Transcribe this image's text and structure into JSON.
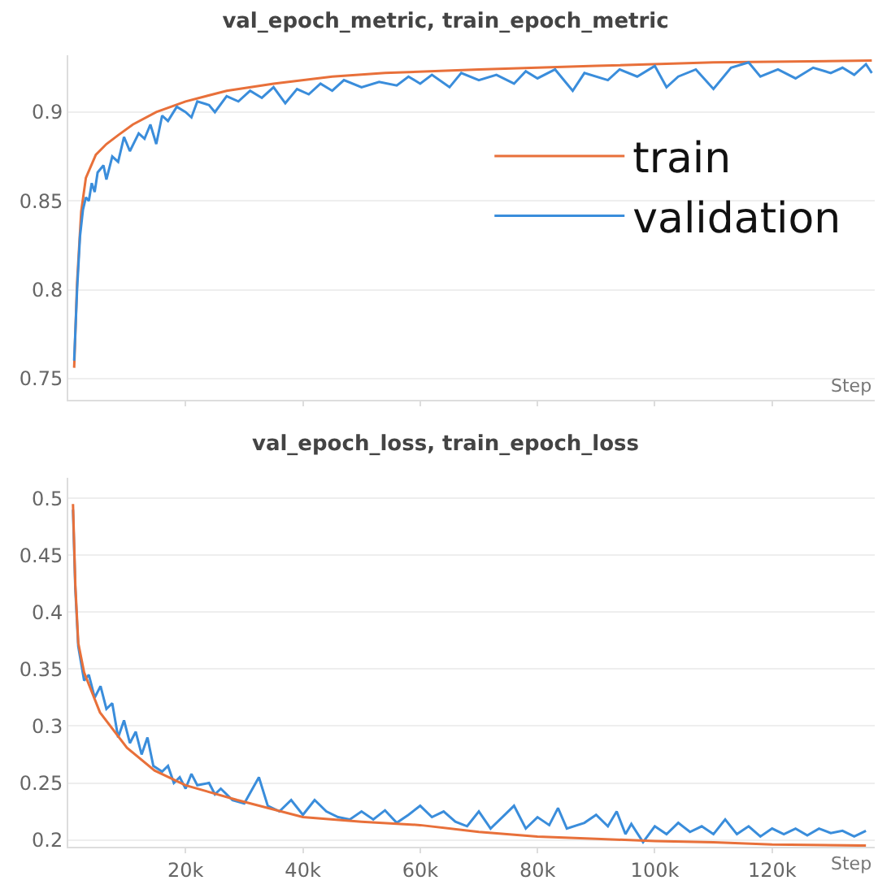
{
  "chart_data": [
    {
      "type": "line",
      "title": "val_epoch_metric, train_epoch_metric",
      "xlabel": "Step",
      "xlim": [
        0,
        137500
      ],
      "xticks": [
        {
          "value": 20000,
          "label": null
        },
        {
          "value": 40000,
          "label": null
        },
        {
          "value": 60000,
          "label": null
        },
        {
          "value": 80000,
          "label": null
        },
        {
          "value": 100000,
          "label": null
        },
        {
          "value": 120000,
          "label": null
        }
      ],
      "tick_labels": "y",
      "ylim": [
        0.738,
        0.932
      ],
      "yticks": [
        0.75,
        0.8,
        0.85,
        0.9
      ],
      "grid": "y",
      "legend": "right",
      "series": [
        {
          "name": "train",
          "color": "#e8703a",
          "x": [
            1000,
            1500,
            2200,
            3000,
            4700,
            6500,
            8500,
            11000,
            15000,
            20000,
            27000,
            35000,
            45000,
            54000,
            70000,
            90000,
            110000,
            137000
          ],
          "values": [
            0.756,
            0.804,
            0.844,
            0.863,
            0.876,
            0.882,
            0.887,
            0.893,
            0.9,
            0.906,
            0.912,
            0.916,
            0.92,
            0.922,
            0.924,
            0.926,
            0.928,
            0.929
          ]
        },
        {
          "name": "validation",
          "color": "#3a8ddb",
          "x": [
            1000,
            1500,
            2000,
            2500,
            3000,
            3500,
            4000,
            4500,
            5000,
            6000,
            6500,
            7500,
            8500,
            9500,
            10500,
            12000,
            13000,
            14000,
            15000,
            16000,
            17000,
            18500,
            20000,
            21000,
            22000,
            24000,
            25000,
            27000,
            29000,
            31000,
            33000,
            35000,
            37000,
            39000,
            41000,
            43000,
            45000,
            47000,
            50000,
            53000,
            56000,
            58000,
            60000,
            62000,
            65000,
            67000,
            70000,
            73000,
            76000,
            78000,
            80000,
            83000,
            86000,
            88000,
            92000,
            94000,
            97000,
            100000,
            102000,
            104000,
            107000,
            110000,
            113000,
            116000,
            118000,
            121000,
            124000,
            127000,
            130000,
            132000,
            134000,
            136000,
            137000
          ],
          "values": [
            0.76,
            0.8,
            0.83,
            0.845,
            0.852,
            0.85,
            0.86,
            0.855,
            0.866,
            0.87,
            0.862,
            0.875,
            0.872,
            0.886,
            0.878,
            0.888,
            0.885,
            0.893,
            0.882,
            0.898,
            0.895,
            0.903,
            0.9,
            0.897,
            0.906,
            0.904,
            0.9,
            0.909,
            0.906,
            0.912,
            0.908,
            0.914,
            0.905,
            0.913,
            0.91,
            0.916,
            0.912,
            0.918,
            0.914,
            0.917,
            0.915,
            0.92,
            0.916,
            0.921,
            0.914,
            0.922,
            0.918,
            0.921,
            0.916,
            0.923,
            0.919,
            0.924,
            0.912,
            0.922,
            0.918,
            0.924,
            0.92,
            0.926,
            0.914,
            0.92,
            0.924,
            0.913,
            0.925,
            0.928,
            0.92,
            0.924,
            0.919,
            0.925,
            0.922,
            0.925,
            0.921,
            0.927,
            0.922
          ]
        }
      ]
    },
    {
      "type": "line",
      "title": "val_epoch_loss, train_epoch_loss",
      "xlabel": "Step",
      "xlim": [
        0,
        137500
      ],
      "xticks": [
        {
          "value": 20000,
          "label": "20k"
        },
        {
          "value": 40000,
          "label": "40k"
        },
        {
          "value": 60000,
          "label": "60k"
        },
        {
          "value": 80000,
          "label": "80k"
        },
        {
          "value": 100000,
          "label": "100k"
        },
        {
          "value": 120000,
          "label": "120k"
        }
      ],
      "ylim": [
        0.194,
        0.518
      ],
      "yticks": [
        0.2,
        0.25,
        0.3,
        0.35,
        0.4,
        0.45,
        0.5
      ],
      "grid": "y",
      "series": [
        {
          "color": "#3a8ddb",
          "x": [
            800,
            1200,
            1700,
            2200,
            2700,
            3500,
            4500,
            5500,
            6500,
            7500,
            8500,
            9500,
            10500,
            11500,
            12500,
            13500,
            14500,
            16000,
            17000,
            18000,
            19000,
            20000,
            21000,
            22000,
            24000,
            25000,
            26000,
            28000,
            30000,
            32500,
            34000,
            36000,
            38000,
            40000,
            42000,
            44000,
            46000,
            48000,
            50000,
            52000,
            54000,
            56000,
            58000,
            60000,
            62000,
            64000,
            66000,
            68000,
            70000,
            72000,
            74000,
            76000,
            78000,
            80000,
            82000,
            83500,
            85000,
            88000,
            90000,
            92000,
            93500,
            95000,
            96000,
            98000,
            100000,
            102000,
            104000,
            106000,
            108000,
            110000,
            112000,
            114000,
            116000,
            118000,
            120000,
            122000,
            124000,
            126000,
            128000,
            130000,
            132000,
            134000,
            136000
          ],
          "values": [
            0.49,
            0.42,
            0.37,
            0.355,
            0.34,
            0.345,
            0.325,
            0.335,
            0.315,
            0.32,
            0.29,
            0.305,
            0.285,
            0.295,
            0.275,
            0.29,
            0.265,
            0.26,
            0.265,
            0.25,
            0.255,
            0.245,
            0.258,
            0.248,
            0.25,
            0.24,
            0.245,
            0.235,
            0.232,
            0.255,
            0.23,
            0.225,
            0.235,
            0.222,
            0.235,
            0.225,
            0.22,
            0.218,
            0.225,
            0.218,
            0.226,
            0.215,
            0.222,
            0.23,
            0.22,
            0.225,
            0.216,
            0.212,
            0.225,
            0.21,
            0.22,
            0.23,
            0.21,
            0.22,
            0.213,
            0.228,
            0.21,
            0.215,
            0.222,
            0.212,
            0.225,
            0.205,
            0.214,
            0.198,
            0.212,
            0.205,
            0.215,
            0.207,
            0.212,
            0.205,
            0.218,
            0.205,
            0.212,
            0.203,
            0.21,
            0.205,
            0.21,
            0.204,
            0.21,
            0.206,
            0.208,
            0.203,
            0.208
          ]
        },
        {
          "color": "#e8703a",
          "x": [
            800,
            1200,
            1700,
            2700,
            5400,
            10000,
            14700,
            20000,
            28800,
            40000,
            50000,
            60000,
            70000,
            80000,
            90000,
            100000,
            110000,
            120000,
            136000
          ],
          "values": [
            0.495,
            0.424,
            0.373,
            0.347,
            0.312,
            0.281,
            0.261,
            0.248,
            0.235,
            0.22,
            0.216,
            0.213,
            0.207,
            0.203,
            0.201,
            0.199,
            0.198,
            0.196,
            0.195
          ]
        }
      ]
    }
  ]
}
